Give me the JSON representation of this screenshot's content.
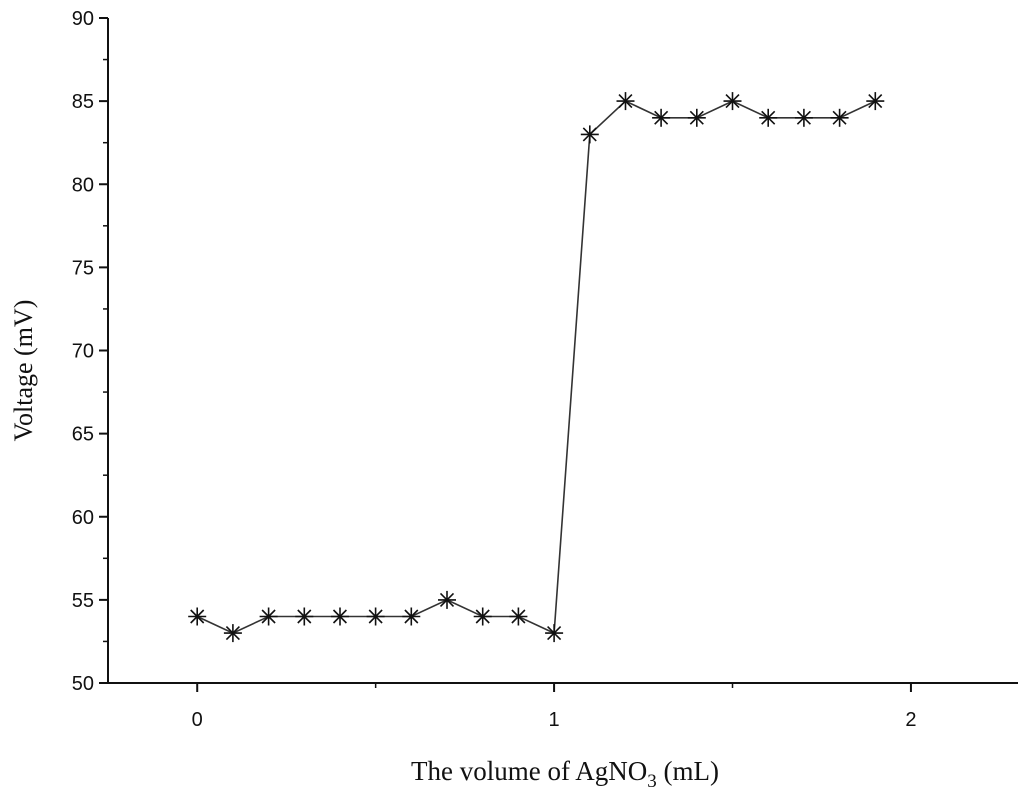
{
  "chart_data": {
    "type": "line",
    "xlabel": {
      "prefix": "The volume of AgNO",
      "subscript": "3",
      "suffix": " (mL)"
    },
    "ylabel": "Voltage (mV)",
    "xlim": [
      -0.25,
      2.3
    ],
    "ylim": [
      50,
      90
    ],
    "x_ticks": [
      0,
      1,
      2
    ],
    "x_tick_labels": [
      "0",
      "1",
      "2"
    ],
    "x_minor_ticks": [
      0.5,
      1.5
    ],
    "y_ticks": [
      50,
      55,
      60,
      65,
      70,
      75,
      80,
      85,
      90
    ],
    "y_tick_labels": [
      "50",
      "55",
      "60",
      "65",
      "70",
      "75",
      "80",
      "85",
      "90"
    ],
    "grid": false,
    "marker": "asterisk",
    "colors": {
      "line": "#333333",
      "axis": "#111111"
    },
    "series": [
      {
        "x": [
          0,
          0.1,
          0.2,
          0.3,
          0.4,
          0.5,
          0.6,
          0.7,
          0.8,
          0.9,
          1.0,
          1.1,
          1.2,
          1.3,
          1.4,
          1.5,
          1.6,
          1.7,
          1.8,
          1.9
        ],
        "y": [
          54,
          53,
          54,
          54,
          54,
          54,
          54,
          55,
          54,
          54,
          53,
          83,
          85,
          84,
          84,
          85,
          84,
          84,
          84,
          85
        ]
      }
    ]
  }
}
